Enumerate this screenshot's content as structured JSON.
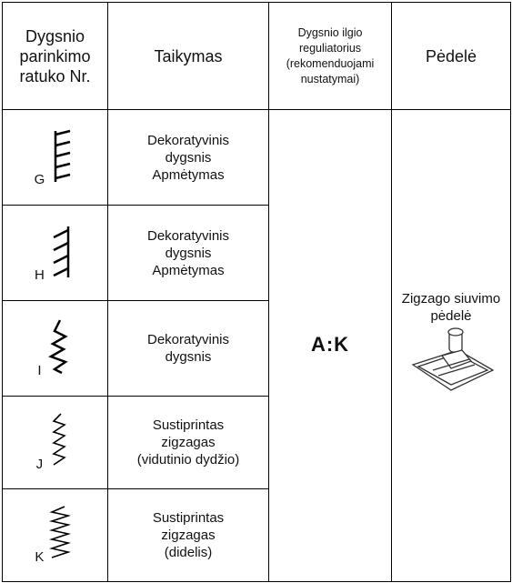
{
  "table": {
    "header": [
      [
        "Dygsnio",
        "parinkimo",
        "ratuko Nr."
      ],
      [
        "Taikymas"
      ],
      [
        "Dygsnio ilgio",
        "reguliatorius",
        "(rekomenduojami",
        "nustatymai)"
      ],
      [
        "Pėdelė"
      ]
    ],
    "rows": [
      {
        "stitch": "G",
        "application": [
          "Dekoratyvinis",
          "dygsnis",
          "Apmėtymas"
        ]
      },
      {
        "stitch": "H",
        "application": [
          "Dekoratyvinis",
          "dygsnis",
          "Apmėtymas"
        ]
      },
      {
        "stitch": "I",
        "application": [
          "Dekoratyvinis",
          "dygsnis"
        ]
      },
      {
        "stitch": "J",
        "application": [
          "Sustiprintas",
          "zigzagas",
          "(vidutinio dydžio)"
        ]
      },
      {
        "stitch": "K",
        "application": [
          "Sustiprintas",
          "zigzagas",
          "(didelis)"
        ]
      }
    ],
    "length_setting": "A:K",
    "presser_foot": [
      "Zigzago siuvimo",
      "pėdelė"
    ]
  }
}
